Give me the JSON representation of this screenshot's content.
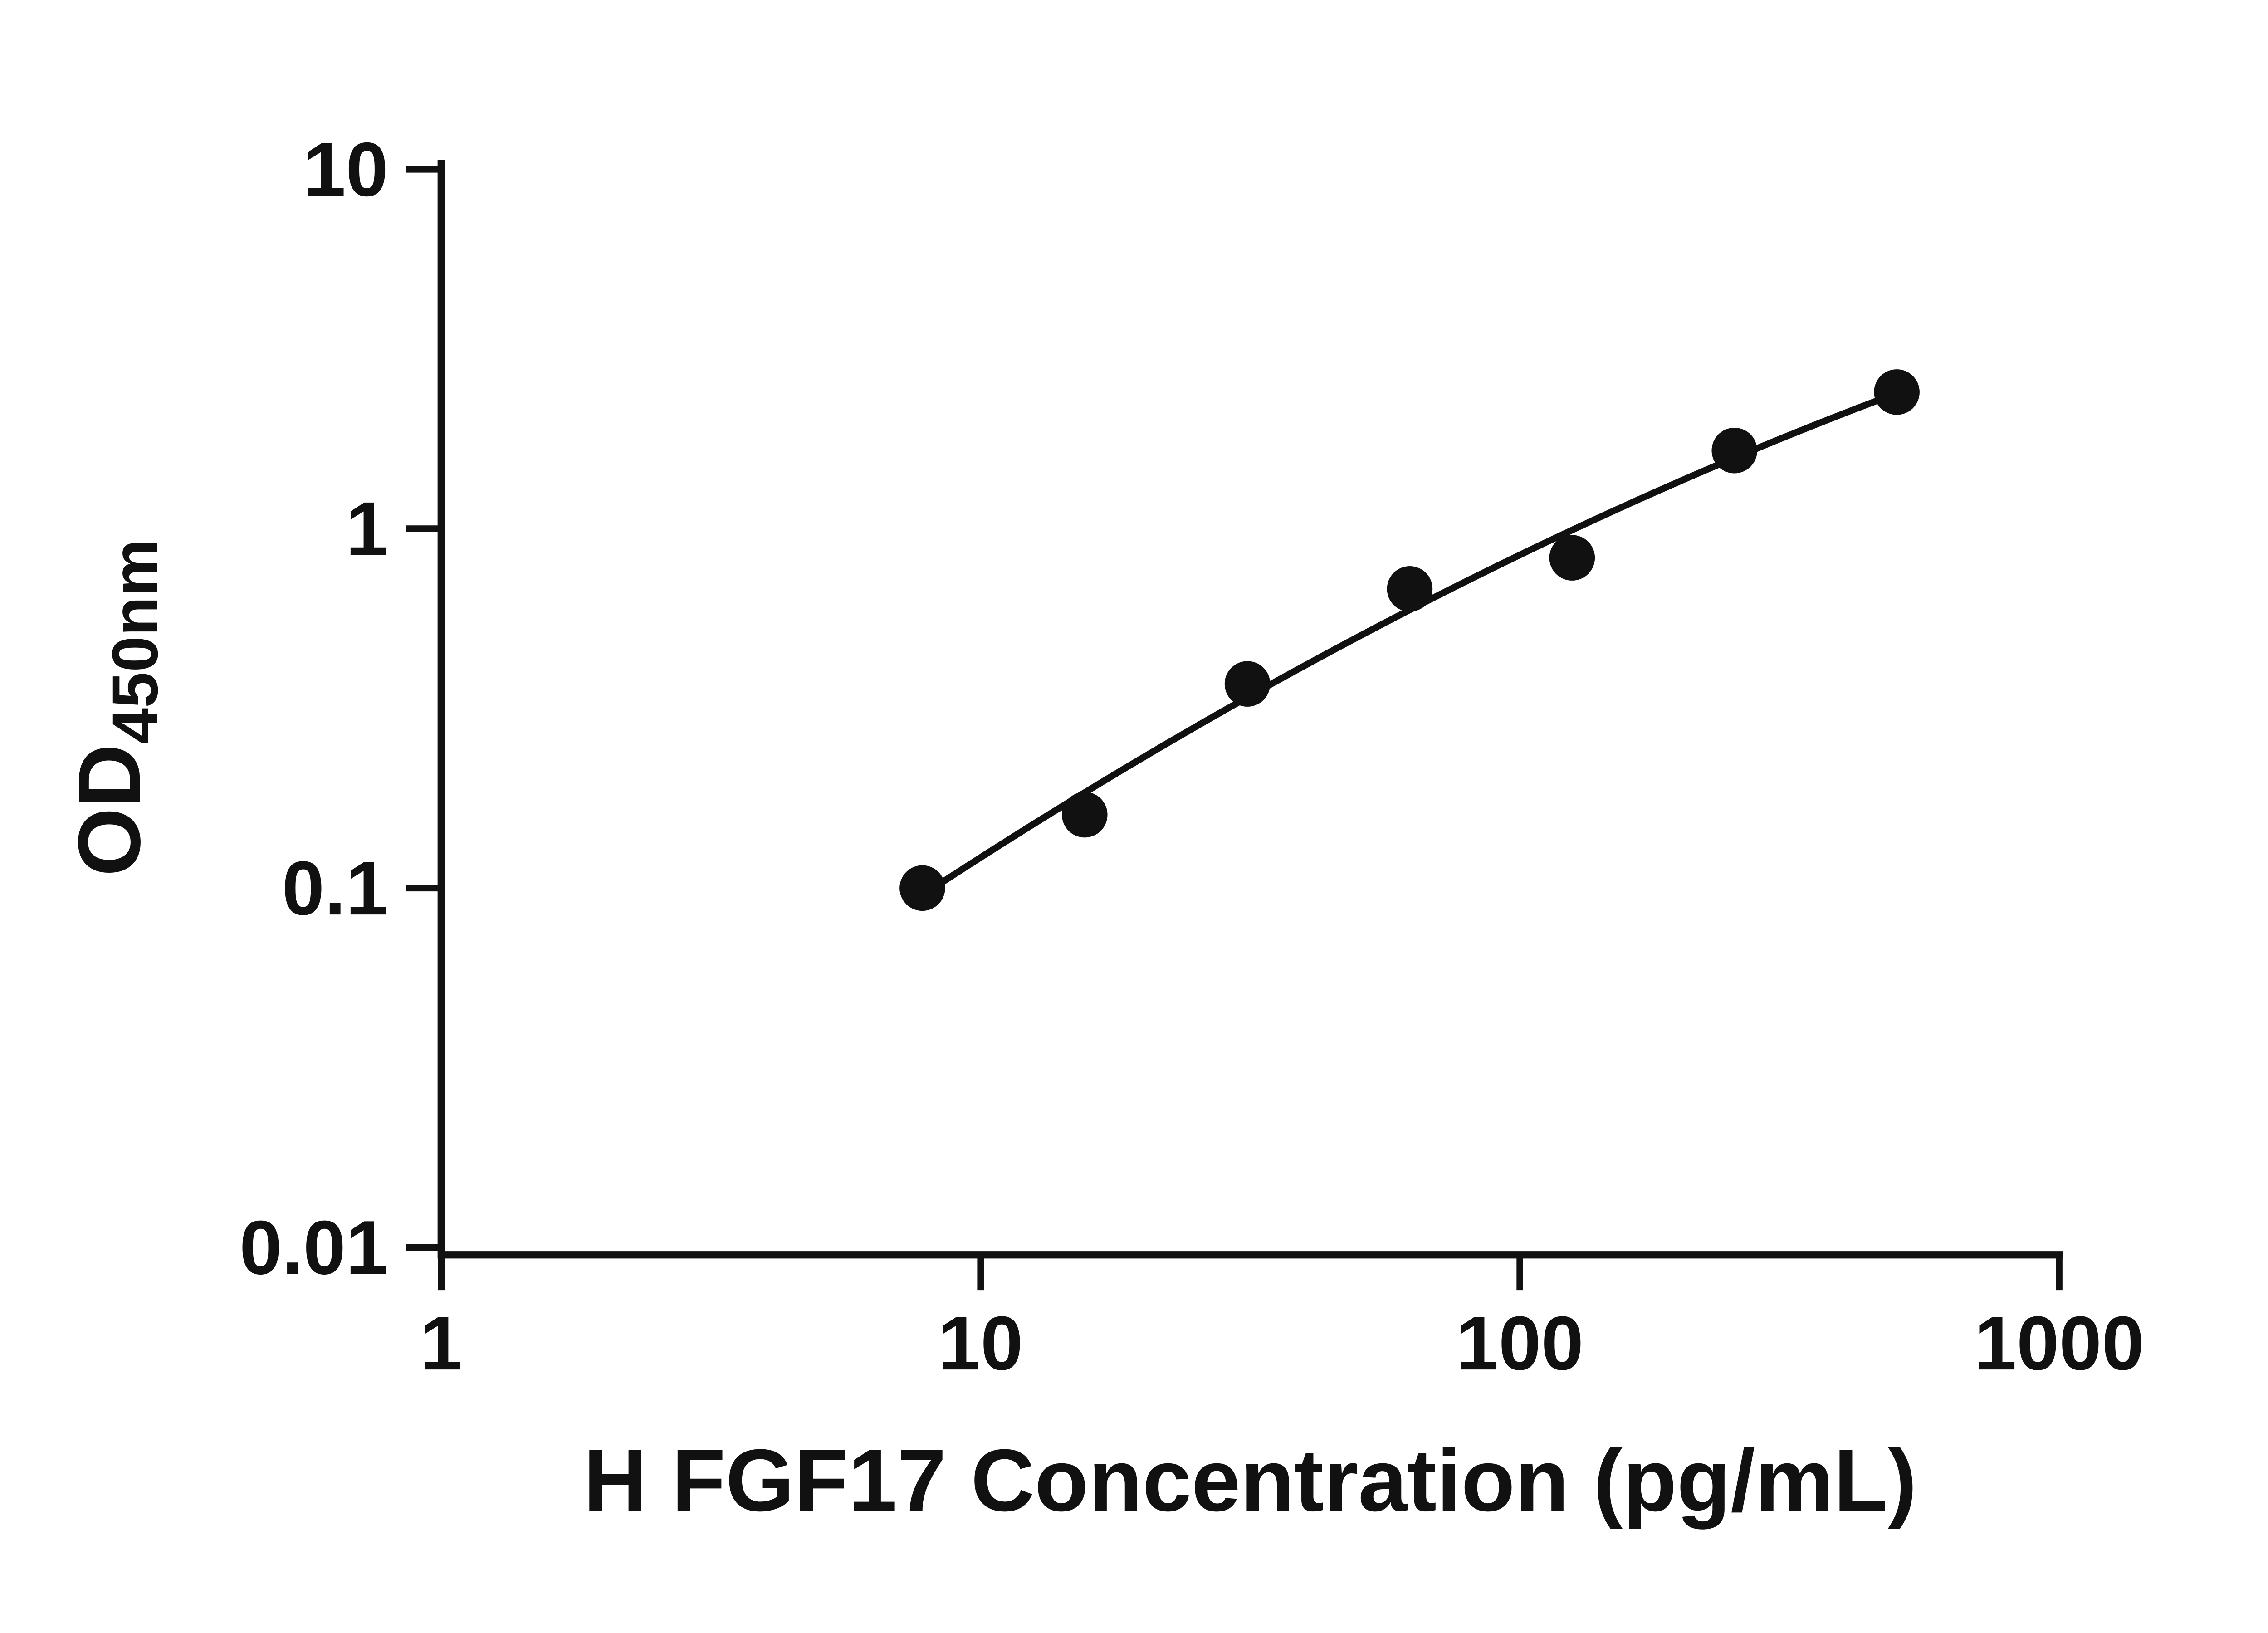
{
  "figure": {
    "background": "#ffffff"
  },
  "chart_data": {
    "type": "scatter",
    "title": "",
    "xlabel": "H FGF17 Concentration (pg/mL)",
    "ylabel_main": "OD",
    "ylabel_sub": "450nm",
    "x_scale": "log",
    "y_scale": "log",
    "xlim": [
      1,
      1000
    ],
    "ylim": [
      0.01,
      10
    ],
    "x_ticks": [
      "1",
      "10",
      "100",
      "1000"
    ],
    "y_ticks": [
      "0.01",
      "0.1",
      "1",
      "10"
    ],
    "grid": "off",
    "legend": "none",
    "fit_type": "smooth-curve-loglog",
    "points": [
      {
        "x": 7.8,
        "y": 0.1
      },
      {
        "x": 15.6,
        "y": 0.16
      },
      {
        "x": 31.25,
        "y": 0.37
      },
      {
        "x": 62.5,
        "y": 0.68
      },
      {
        "x": 125,
        "y": 0.83
      },
      {
        "x": 250,
        "y": 1.65
      },
      {
        "x": 500,
        "y": 2.4
      }
    ],
    "colors": {
      "points": "#111111",
      "line": "#111111",
      "axes": "#111111",
      "background": "#ffffff"
    }
  }
}
